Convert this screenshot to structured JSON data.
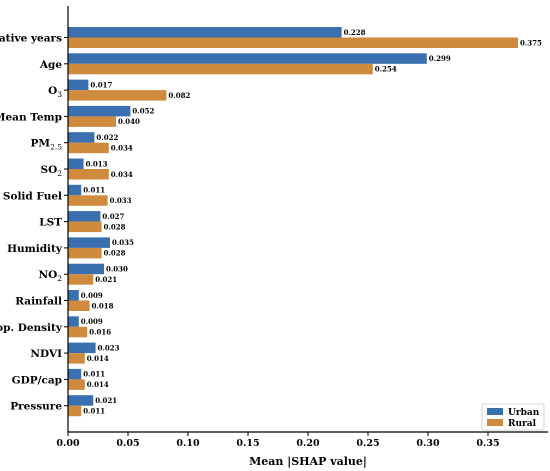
{
  "chart_data": {
    "type": "bar",
    "orientation": "horizontal",
    "categories": [
      {
        "main": "Relative years",
        "sub": ""
      },
      {
        "main": "Age",
        "sub": ""
      },
      {
        "main": "O",
        "sub": "3"
      },
      {
        "main": "Mean Temp",
        "sub": ""
      },
      {
        "main": "PM",
        "sub": "2.5"
      },
      {
        "main": "SO",
        "sub": "2"
      },
      {
        "main": "Solid Fuel",
        "sub": ""
      },
      {
        "main": "LST",
        "sub": ""
      },
      {
        "main": "Humidity",
        "sub": ""
      },
      {
        "main": "NO",
        "sub": "2"
      },
      {
        "main": "Rainfall",
        "sub": ""
      },
      {
        "main": "Pop. Density",
        "sub": ""
      },
      {
        "main": "NDVI",
        "sub": ""
      },
      {
        "main": "GDP/cap",
        "sub": ""
      },
      {
        "main": "Pressure",
        "sub": ""
      }
    ],
    "series": [
      {
        "name": "Urban",
        "color": "#3a6fb0",
        "values": [
          0.228,
          0.299,
          0.017,
          0.052,
          0.022,
          0.013,
          0.011,
          0.027,
          0.035,
          0.03,
          0.009,
          0.009,
          0.023,
          0.011,
          0.021
        ],
        "labels": [
          "0.228",
          "0.299",
          "0.017",
          "0.052",
          "0.022",
          "0.013",
          "0.011",
          "0.027",
          "0.035",
          "0.030",
          "0.009",
          "0.009",
          "0.023",
          "0.011",
          "0.021"
        ]
      },
      {
        "name": "Rural",
        "color": "#d08a3e",
        "values": [
          0.375,
          0.254,
          0.082,
          0.04,
          0.034,
          0.034,
          0.033,
          0.028,
          0.028,
          0.021,
          0.018,
          0.016,
          0.014,
          0.014,
          0.011
        ],
        "labels": [
          "0.375",
          "0.254",
          "0.082",
          "0.040",
          "0.034",
          "0.034",
          "0.033",
          "0.028",
          "0.028",
          "0.021",
          "0.018",
          "0.016",
          "0.014",
          "0.014",
          "0.011"
        ]
      }
    ],
    "xticks": [
      {
        "value": 0.0,
        "label": "0.00"
      },
      {
        "value": 0.05,
        "label": "0.05"
      },
      {
        "value": 0.1,
        "label": "0.10"
      },
      {
        "value": 0.15,
        "label": "0.15"
      },
      {
        "value": 0.2,
        "label": "0.20"
      },
      {
        "value": 0.25,
        "label": "0.25"
      },
      {
        "value": 0.3,
        "label": "0.30"
      },
      {
        "value": 0.35,
        "label": "0.35"
      }
    ],
    "xlim": [
      0,
      0.4
    ],
    "xlabel": "Mean |SHAP value|",
    "ylabel": "",
    "title": "",
    "grid": false,
    "legend_position": "bottom-right"
  }
}
